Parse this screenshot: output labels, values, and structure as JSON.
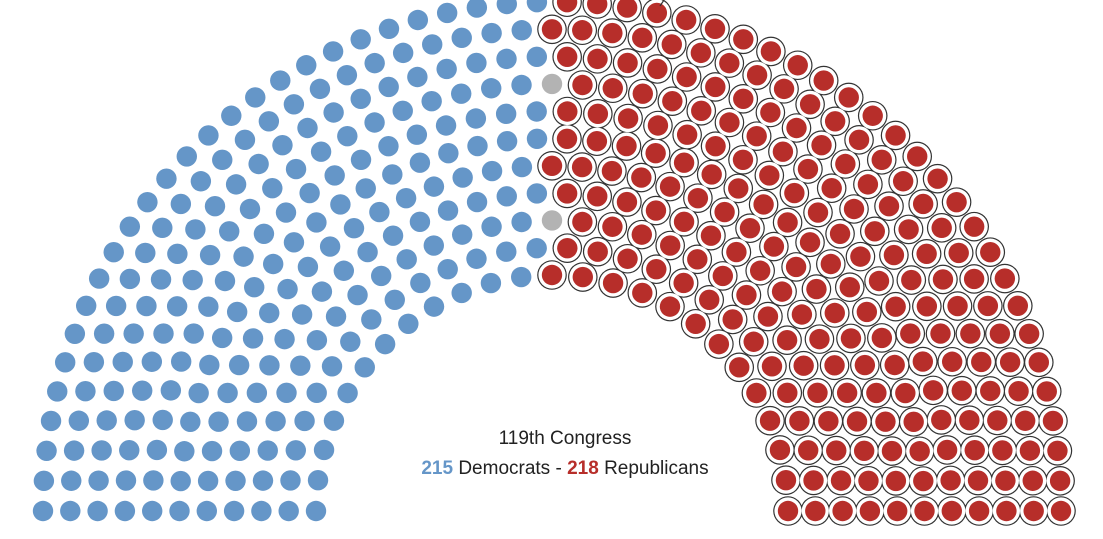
{
  "chart_data": {
    "type": "parliament",
    "title": "119th Congress",
    "total_seats": 435,
    "series": [
      {
        "name": "Democrats",
        "value": 215,
        "color": "#6596c8"
      },
      {
        "name": "Vacant",
        "value": 2,
        "color": "#b3b3b3"
      },
      {
        "name": "Republicans",
        "value": 218,
        "color": "#b72e2a"
      }
    ],
    "majority_marker": true,
    "grid": false
  },
  "caption": {
    "title": "119th Congress",
    "dem_count": "215",
    "dem_label": "Democrats",
    "separator": "-",
    "rep_count": "218",
    "rep_label": "Republicans"
  },
  "colors": {
    "democrat": "#6596c8",
    "republican": "#b72e2a",
    "vacant": "#b3b3b3",
    "outline": "#333333",
    "caption_text": "#222222"
  }
}
